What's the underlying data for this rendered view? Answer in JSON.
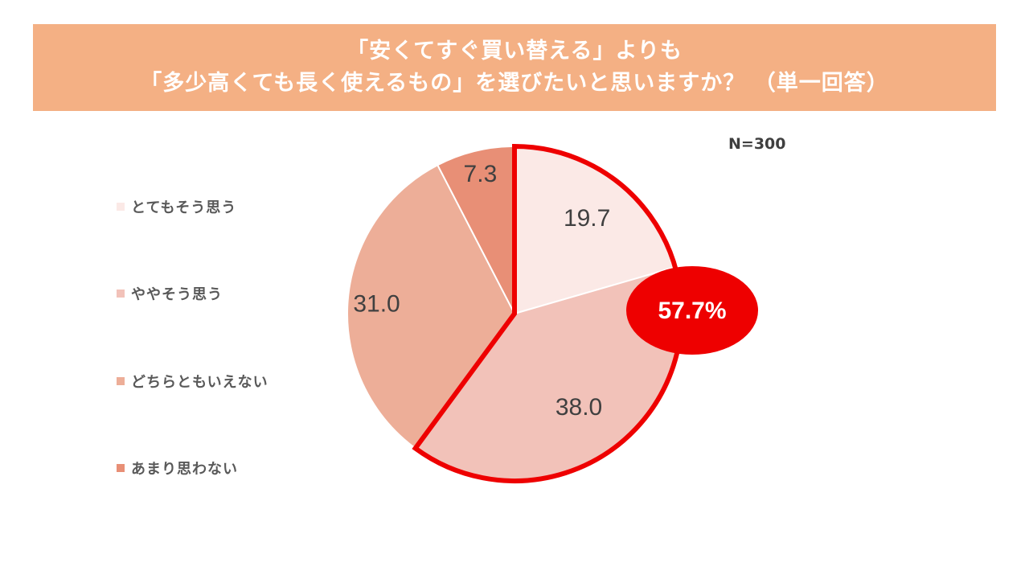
{
  "title": {
    "line1": "「安くてすぐ買い替える」よりも",
    "line2": "「多少高くても長く使えるもの」を選びたいと思いますか？ （単一回答）"
  },
  "n_label": "N=300",
  "colors": {
    "title_band": "#f4b084",
    "highlight": "#ee0000"
  },
  "highlight_label": "57.7%",
  "chart_data": {
    "type": "pie",
    "categories": [
      "とてもそう思う",
      "ややそう思う",
      "どちらともいえない",
      "あまり思わない"
    ],
    "values": [
      19.7,
      38.0,
      31.0,
      7.3
    ],
    "data_labels": [
      "19.7",
      "38.0",
      "31.0",
      "7.3"
    ],
    "colors": [
      "#fbe9e6",
      "#f2c2b9",
      "#edae98",
      "#e88f76"
    ],
    "highlight_series": [
      "とてもそう思う",
      "ややそう思う"
    ],
    "highlight_total": 57.7,
    "legend_position": "left"
  }
}
